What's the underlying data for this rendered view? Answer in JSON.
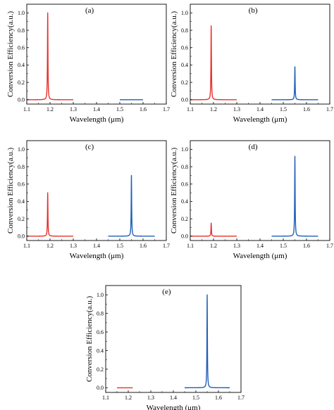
{
  "colors": {
    "red": "#e8302b",
    "blue": "#1f5fb8",
    "axis": "#000000"
  },
  "chart_data": [
    {
      "type": "line",
      "panel_label": "(a)",
      "xlabel": "Wavelength (μm)",
      "ylabel": "Conversion Efficiency(a.u.)",
      "xlim": [
        1.1,
        1.7
      ],
      "ylim": [
        -0.05,
        1.1
      ],
      "xticks": [
        "1.1",
        "1.2",
        "1.3",
        "1.4",
        "1.5",
        "1.6",
        "1.7"
      ],
      "yticks": [
        "0.0",
        "0.2",
        "0.4",
        "0.6",
        "0.8",
        "1.0"
      ],
      "series": [
        {
          "color": "red",
          "range": [
            1.1,
            1.3
          ],
          "peak_x": 1.19,
          "peak_y": 1.0
        },
        {
          "color": "blue",
          "range": [
            1.5,
            1.6
          ],
          "peak_x": 1.55,
          "peak_y": 0.0
        }
      ]
    },
    {
      "type": "line",
      "panel_label": "(b)",
      "xlabel": "Wavelength (μm)",
      "ylabel": "Conversion Efficiency(a.u.)",
      "xlim": [
        1.1,
        1.7
      ],
      "ylim": [
        -0.05,
        1.1
      ],
      "xticks": [
        "1.1",
        "1.2",
        "1.3",
        "1.4",
        "1.5",
        "1.6",
        "1.7"
      ],
      "yticks": [
        "0.0",
        "0.2",
        "0.4",
        "0.6",
        "0.8",
        "1.0"
      ],
      "series": [
        {
          "color": "red",
          "range": [
            1.1,
            1.3
          ],
          "peak_x": 1.19,
          "peak_y": 0.85
        },
        {
          "color": "blue",
          "range": [
            1.45,
            1.65
          ],
          "peak_x": 1.55,
          "peak_y": 0.38
        }
      ]
    },
    {
      "type": "line",
      "panel_label": "(c)",
      "xlabel": "Wavelength (μm)",
      "ylabel": "Conversion Efficiency(a.u.)",
      "xlim": [
        1.1,
        1.7
      ],
      "ylim": [
        -0.05,
        1.1
      ],
      "xticks": [
        "1.1",
        "1.2",
        "1.3",
        "1.4",
        "1.5",
        "1.6",
        "1.7"
      ],
      "yticks": [
        "0.0",
        "0.2",
        "0.4",
        "0.6",
        "0.8",
        "1.0"
      ],
      "series": [
        {
          "color": "red",
          "range": [
            1.1,
            1.3
          ],
          "peak_x": 1.19,
          "peak_y": 0.5
        },
        {
          "color": "blue",
          "range": [
            1.45,
            1.65
          ],
          "peak_x": 1.55,
          "peak_y": 0.7
        }
      ]
    },
    {
      "type": "line",
      "panel_label": "(d)",
      "xlabel": "Wavelength (μm)",
      "ylabel": "Conversion Efficiency(a.u.)",
      "xlim": [
        1.1,
        1.7
      ],
      "ylim": [
        -0.05,
        1.1
      ],
      "xticks": [
        "1.1",
        "1.2",
        "1.3",
        "1.4",
        "1.5",
        "1.6",
        "1.7"
      ],
      "yticks": [
        "0.0",
        "0.2",
        "0.4",
        "0.6",
        "0.8",
        "1.0"
      ],
      "series": [
        {
          "color": "red",
          "range": [
            1.1,
            1.3
          ],
          "peak_x": 1.19,
          "peak_y": 0.15
        },
        {
          "color": "blue",
          "range": [
            1.45,
            1.65
          ],
          "peak_x": 1.55,
          "peak_y": 0.92
        }
      ]
    },
    {
      "type": "line",
      "panel_label": "(e)",
      "xlabel": "Wavelength (μm)",
      "ylabel": "Conversion Efficiency(a.u.)",
      "xlim": [
        1.1,
        1.7
      ],
      "ylim": [
        -0.05,
        1.1
      ],
      "xticks": [
        "1.1",
        "1.2",
        "1.3",
        "1.4",
        "1.5",
        "1.6",
        "1.7"
      ],
      "yticks": [
        "0.0",
        "0.2",
        "0.4",
        "0.6",
        "0.8",
        "1.0"
      ],
      "series": [
        {
          "color": "red",
          "range": [
            1.15,
            1.22
          ],
          "peak_x": 1.19,
          "peak_y": 0.0
        },
        {
          "color": "blue",
          "range": [
            1.45,
            1.65
          ],
          "peak_x": 1.55,
          "peak_y": 1.0
        }
      ]
    }
  ]
}
